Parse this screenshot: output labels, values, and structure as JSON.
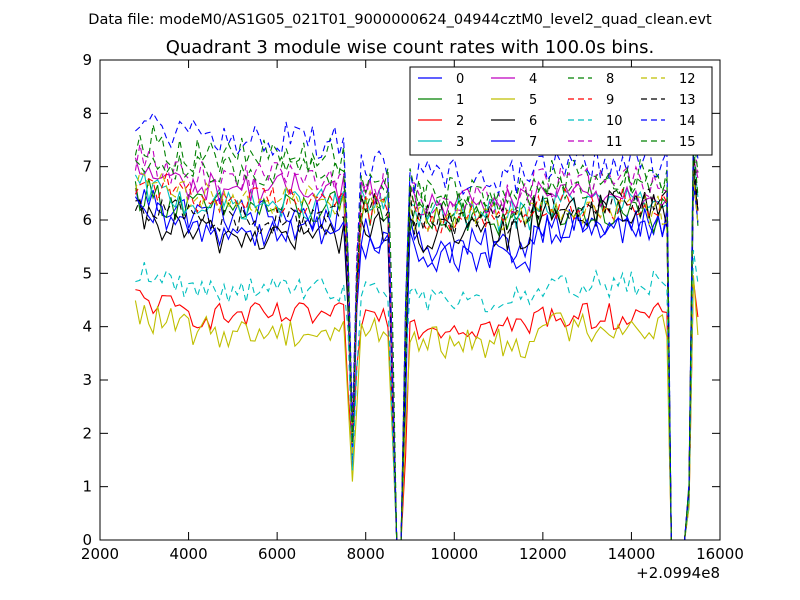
{
  "chart_data": {
    "type": "line",
    "suptitle": "Data file: modeM0/AS1G05_021T01_9000000624_04944cztM0_level2_quad_clean.evt",
    "title": "Quadrant 3 module wise count rates with 100.0s bins.",
    "xlabel": "",
    "ylabel": "",
    "x_offset_label": "+2.0994e8",
    "xlim": [
      2000,
      16000
    ],
    "ylim": [
      0,
      9
    ],
    "x_ticks": [
      2000,
      4000,
      6000,
      8000,
      10000,
      12000,
      14000,
      16000
    ],
    "y_ticks": [
      0,
      1,
      2,
      3,
      4,
      5,
      6,
      7,
      8,
      9
    ],
    "grid": false,
    "legend_position": "upper-right",
    "legend_columns": 4,
    "x": {
      "start": 2800,
      "end": 15500,
      "step": 100
    },
    "gaps": [
      {
        "start": 7700,
        "end": 7700,
        "depth": 0.25
      },
      {
        "start": 8700,
        "end": 8800,
        "depth": 0.0
      },
      {
        "start": 14900,
        "end": 15200,
        "depth": 0.0
      }
    ],
    "series": [
      {
        "name": "0",
        "color": "#0000ff",
        "dash": "solid",
        "seg1": 6.1,
        "seg2": 5.5,
        "seg3": 5.9,
        "noise": 0.35
      },
      {
        "name": "1",
        "color": "#008000",
        "dash": "solid",
        "seg1": 6.2,
        "seg2": 6.0,
        "seg3": 6.1,
        "noise": 0.35
      },
      {
        "name": "2",
        "color": "#ff0000",
        "dash": "solid",
        "seg1": 4.2,
        "seg2": 4.0,
        "seg3": 4.2,
        "noise": 0.25
      },
      {
        "name": "3",
        "color": "#00bfbf",
        "dash": "solid",
        "seg1": 6.3,
        "seg2": 6.1,
        "seg3": 6.3,
        "noise": 0.3
      },
      {
        "name": "4",
        "color": "#bf00bf",
        "dash": "solid",
        "seg1": 6.6,
        "seg2": 6.3,
        "seg3": 6.5,
        "noise": 0.3
      },
      {
        "name": "5",
        "color": "#bfbf00",
        "dash": "solid",
        "seg1": 3.9,
        "seg2": 3.7,
        "seg3": 4.0,
        "noise": 0.3
      },
      {
        "name": "6",
        "color": "#000000",
        "dash": "solid",
        "seg1": 5.7,
        "seg2": 5.7,
        "seg3": 6.2,
        "noise": 0.35
      },
      {
        "name": "7",
        "color": "#0000ff",
        "dash": "solid",
        "seg1": 5.8,
        "seg2": 5.3,
        "seg3": 5.8,
        "noise": 0.3
      },
      {
        "name": "8",
        "color": "#008000",
        "dash": "dashed",
        "seg1": 7.2,
        "seg2": 6.3,
        "seg3": 6.8,
        "noise": 0.35
      },
      {
        "name": "9",
        "color": "#ff0000",
        "dash": "dashed",
        "seg1": 6.4,
        "seg2": 6.0,
        "seg3": 6.3,
        "noise": 0.3
      },
      {
        "name": "10",
        "color": "#00bfbf",
        "dash": "dashed",
        "seg1": 4.7,
        "seg2": 4.5,
        "seg3": 4.8,
        "noise": 0.25
      },
      {
        "name": "11",
        "color": "#bf00bf",
        "dash": "dashed",
        "seg1": 6.8,
        "seg2": 6.4,
        "seg3": 6.7,
        "noise": 0.3
      },
      {
        "name": "12",
        "color": "#bfbf00",
        "dash": "dashed",
        "seg1": 6.4,
        "seg2": 6.1,
        "seg3": 6.2,
        "noise": 0.3
      },
      {
        "name": "13",
        "color": "#000000",
        "dash": "dashed",
        "seg1": 6.0,
        "seg2": 6.0,
        "seg3": 6.3,
        "noise": 0.3
      },
      {
        "name": "14",
        "color": "#0000ff",
        "dash": "dashed",
        "seg1": 7.5,
        "seg2": 6.8,
        "seg3": 7.1,
        "noise": 0.35
      },
      {
        "name": "15",
        "color": "#008000",
        "dash": "dashed",
        "seg1": 6.9,
        "seg2": 6.5,
        "seg3": 6.7,
        "noise": 0.3
      }
    ]
  }
}
